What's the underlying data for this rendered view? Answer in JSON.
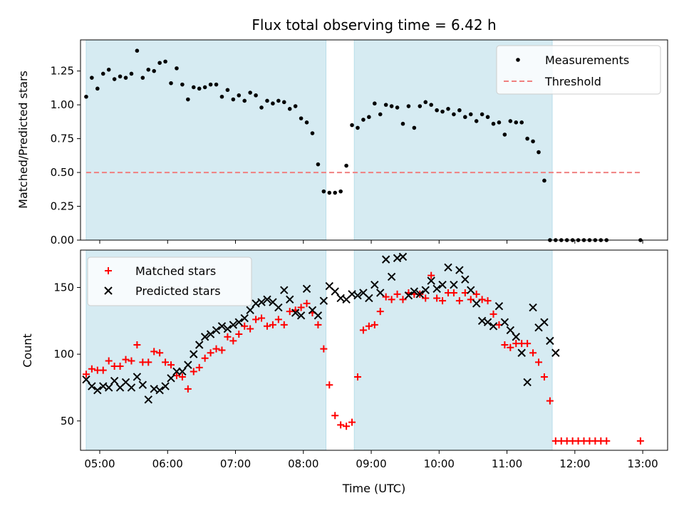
{
  "chart_data": [
    {
      "type": "scatter",
      "title": "Flux total observing time = 6.42 h",
      "xlabel": "",
      "ylabel": "Matched/Predicted stars",
      "ylim": [
        0,
        1.48
      ],
      "xlim": [
        "04:43",
        "13:22"
      ],
      "yticks": [
        "0.00",
        "0.25",
        "0.50",
        "0.75",
        "1.00",
        "1.25"
      ],
      "legend_position": "top-right",
      "shaded_intervals": [
        [
          "04:48",
          "08:20"
        ],
        [
          "08:45",
          "11:40"
        ]
      ],
      "shade_color": "#add8e6",
      "series": [
        {
          "name": "Measurements",
          "marker": "dot",
          "color": "#000000",
          "x": [
            "04:48",
            "04:53",
            "04:58",
            "05:03",
            "05:08",
            "05:13",
            "05:18",
            "05:23",
            "05:28",
            "05:33",
            "05:38",
            "05:43",
            "05:48",
            "05:53",
            "05:58",
            "06:03",
            "06:08",
            "06:13",
            "06:18",
            "06:23",
            "06:28",
            "06:33",
            "06:38",
            "06:43",
            "06:48",
            "06:53",
            "06:58",
            "07:03",
            "07:08",
            "07:13",
            "07:18",
            "07:23",
            "07:28",
            "07:33",
            "07:38",
            "07:43",
            "07:48",
            "07:53",
            "07:58",
            "08:03",
            "08:08",
            "08:13",
            "08:18",
            "08:23",
            "08:28",
            "08:33",
            "08:38",
            "08:43",
            "08:48",
            "08:53",
            "08:58",
            "09:03",
            "09:08",
            "09:13",
            "09:18",
            "09:23",
            "09:28",
            "09:33",
            "09:38",
            "09:43",
            "09:48",
            "09:53",
            "09:58",
            "10:03",
            "10:08",
            "10:13",
            "10:18",
            "10:23",
            "10:28",
            "10:33",
            "10:38",
            "10:43",
            "10:48",
            "10:53",
            "10:58",
            "11:03",
            "11:08",
            "11:13",
            "11:18",
            "11:23",
            "11:28",
            "11:33",
            "11:38",
            "11:43",
            "11:48",
            "11:53",
            "11:58",
            "12:03",
            "12:08",
            "12:13",
            "12:18",
            "12:23",
            "12:28",
            "12:58"
          ],
          "values": [
            1.06,
            1.2,
            1.12,
            1.23,
            1.26,
            1.19,
            1.21,
            1.2,
            1.23,
            1.4,
            1.2,
            1.26,
            1.25,
            1.31,
            1.32,
            1.16,
            1.27,
            1.15,
            1.04,
            1.13,
            1.12,
            1.13,
            1.15,
            1.15,
            1.06,
            1.11,
            1.04,
            1.07,
            1.03,
            1.09,
            1.07,
            0.98,
            1.03,
            1.01,
            1.03,
            1.02,
            0.97,
            0.99,
            0.9,
            0.87,
            0.79,
            0.56,
            0.36,
            0.35,
            0.35,
            0.36,
            0.55,
            0.85,
            0.83,
            0.89,
            0.91,
            1.01,
            0.93,
            1.0,
            0.99,
            0.98,
            0.86,
            0.99,
            0.83,
            0.99,
            1.02,
            1.0,
            0.96,
            0.95,
            0.97,
            0.93,
            0.96,
            0.91,
            0.93,
            0.88,
            0.93,
            0.91,
            0.86,
            0.87,
            0.78,
            0.88,
            0.87,
            0.87,
            0.75,
            0.73,
            0.65,
            0.44,
            0.0,
            0.0,
            0.0,
            0.0,
            0.0,
            0.0,
            0.0,
            0.0,
            0.0,
            0.0,
            0.0,
            0.0
          ]
        },
        {
          "name": "Threshold",
          "marker": "dashed-line",
          "color": "#f08080",
          "x": [
            "04:48",
            "12:58"
          ],
          "values": [
            0.5,
            0.5
          ]
        }
      ]
    },
    {
      "type": "scatter",
      "title": "",
      "xlabel": "Time (UTC)",
      "ylabel": "Count",
      "ylim": [
        28,
        178
      ],
      "xlim": [
        "04:43",
        "13:22"
      ],
      "yticks": [
        "50",
        "100",
        "150"
      ],
      "xticks": [
        "05:00",
        "06:00",
        "07:00",
        "08:00",
        "09:00",
        "10:00",
        "11:00",
        "12:00",
        "13:00"
      ],
      "legend_position": "top-left",
      "shaded_intervals": [
        [
          "04:48",
          "08:20"
        ],
        [
          "08:45",
          "11:40"
        ]
      ],
      "shade_color": "#add8e6",
      "series": [
        {
          "name": "Matched stars",
          "marker": "plus",
          "color": "#ff0000",
          "x": [
            "04:48",
            "04:53",
            "04:58",
            "05:03",
            "05:08",
            "05:13",
            "05:18",
            "05:23",
            "05:28",
            "05:33",
            "05:38",
            "05:43",
            "05:48",
            "05:53",
            "05:58",
            "06:03",
            "06:08",
            "06:13",
            "06:18",
            "06:23",
            "06:28",
            "06:33",
            "06:38",
            "06:43",
            "06:48",
            "06:53",
            "06:58",
            "07:03",
            "07:08",
            "07:13",
            "07:18",
            "07:23",
            "07:28",
            "07:33",
            "07:38",
            "07:43",
            "07:48",
            "07:53",
            "07:58",
            "08:03",
            "08:08",
            "08:13",
            "08:18",
            "08:23",
            "08:28",
            "08:33",
            "08:38",
            "08:43",
            "08:48",
            "08:53",
            "08:58",
            "09:03",
            "09:08",
            "09:13",
            "09:18",
            "09:23",
            "09:28",
            "09:33",
            "09:38",
            "09:43",
            "09:48",
            "09:53",
            "09:58",
            "10:03",
            "10:08",
            "10:13",
            "10:18",
            "10:23",
            "10:28",
            "10:33",
            "10:38",
            "10:43",
            "10:48",
            "10:53",
            "10:58",
            "11:03",
            "11:08",
            "11:13",
            "11:18",
            "11:23",
            "11:28",
            "11:33",
            "11:38",
            "11:43",
            "11:48",
            "11:53",
            "11:58",
            "12:03",
            "12:08",
            "12:13",
            "12:18",
            "12:23",
            "12:28",
            "12:58"
          ],
          "values": [
            85,
            89,
            88,
            88,
            95,
            91,
            91,
            96,
            95,
            107,
            94,
            94,
            102,
            101,
            94,
            92,
            84,
            83,
            74,
            87,
            90,
            97,
            101,
            104,
            103,
            113,
            110,
            115,
            121,
            119,
            126,
            127,
            121,
            122,
            126,
            122,
            132,
            133,
            135,
            138,
            131,
            122,
            104,
            77,
            54,
            47,
            46,
            49,
            83,
            118,
            121,
            122,
            132,
            143,
            141,
            145,
            141,
            146,
            145,
            145,
            142,
            159,
            142,
            140,
            146,
            146,
            140,
            146,
            141,
            145,
            141,
            140,
            130,
            122,
            107,
            105,
            108,
            108,
            108,
            101,
            94,
            83,
            65,
            35,
            35,
            35,
            35,
            35,
            35,
            35,
            35,
            35,
            35,
            35
          ]
        },
        {
          "name": "Predicted stars",
          "marker": "x",
          "color": "#000000",
          "x": [
            "04:48",
            "04:53",
            "04:58",
            "05:03",
            "05:08",
            "05:13",
            "05:18",
            "05:23",
            "05:28",
            "05:33",
            "05:38",
            "05:43",
            "05:48",
            "05:53",
            "05:58",
            "06:03",
            "06:08",
            "06:13",
            "06:18",
            "06:23",
            "06:28",
            "06:33",
            "06:38",
            "06:43",
            "06:48",
            "06:53",
            "06:58",
            "07:03",
            "07:08",
            "07:13",
            "07:18",
            "07:23",
            "07:28",
            "07:33",
            "07:38",
            "07:43",
            "07:48",
            "07:53",
            "07:58",
            "08:03",
            "08:08",
            "08:13",
            "08:18",
            "08:23",
            "08:28",
            "08:33",
            "08:38",
            "08:43",
            "08:48",
            "08:53",
            "08:58",
            "09:03",
            "09:08",
            "09:13",
            "09:18",
            "09:23",
            "09:28",
            "09:33",
            "09:38",
            "09:43",
            "09:48",
            "09:53",
            "09:58",
            "10:03",
            "10:08",
            "10:13",
            "10:18",
            "10:23",
            "10:28",
            "10:33",
            "10:38",
            "10:43",
            "10:48",
            "10:53",
            "10:58",
            "11:03",
            "11:08",
            "11:13",
            "11:18",
            "11:23",
            "11:28",
            "11:33",
            "11:38",
            "11:43"
          ],
          "values": [
            81,
            76,
            73,
            76,
            75,
            80,
            75,
            79,
            75,
            83,
            77,
            66,
            74,
            73,
            76,
            82,
            87,
            87,
            92,
            100,
            107,
            113,
            115,
            118,
            121,
            119,
            122,
            124,
            127,
            133,
            138,
            139,
            141,
            139,
            135,
            148,
            141,
            131,
            129,
            149,
            133,
            129,
            140,
            151,
            147,
            142,
            141,
            145,
            144,
            146,
            142,
            152,
            146,
            171,
            158,
            172,
            173,
            144,
            147,
            145,
            148,
            155,
            149,
            152,
            165,
            152,
            163,
            156,
            148,
            138,
            125,
            124,
            121,
            136,
            124,
            118,
            113,
            101,
            79,
            135,
            120,
            124,
            110,
            101
          ]
        }
      ]
    }
  ]
}
